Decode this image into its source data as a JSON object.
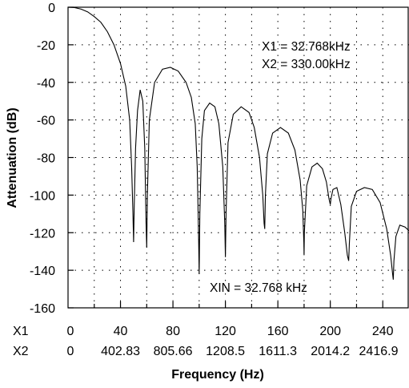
{
  "chart_data": {
    "type": "line",
    "title": "",
    "xlabel": "Frequency (Hz)",
    "ylabel": "Attenuation (dB)",
    "xlim": [
      0,
      260
    ],
    "ylim": [
      -160,
      0
    ],
    "grid": true,
    "x_axis_rows": [
      {
        "name": "X1",
        "ticks": [
          "0",
          "40",
          "80",
          "120",
          "160",
          "200",
          "240"
        ]
      },
      {
        "name": "X2",
        "ticks": [
          "0",
          "402.83",
          "805.66",
          "1208.5",
          "1611.3",
          "2014.2",
          "2416.9"
        ]
      }
    ],
    "x_tick_values": [
      0,
      40,
      80,
      120,
      160,
      200,
      240
    ],
    "y_ticks": [
      0,
      -20,
      -40,
      -60,
      -80,
      -100,
      -120,
      -140,
      -160
    ],
    "annotations": [
      "X1 = 32.768kHz",
      "X2 = 330.00kHz",
      "XIN = 32.768 kHz"
    ],
    "series": [
      {
        "x": [
          0,
          5,
          10,
          15,
          20,
          25,
          30,
          35,
          40,
          44,
          47,
          48.5,
          49.5,
          50,
          50.5,
          51.5,
          53,
          55,
          57,
          58.5,
          59.5,
          60,
          60.5,
          62,
          66,
          72,
          78,
          84,
          90,
          94,
          97,
          98.5,
          99.5,
          100,
          100.5,
          102,
          104,
          108,
          112,
          115,
          118,
          119.5,
          120,
          120.5,
          122,
          126,
          132,
          138,
          142,
          146,
          148.5,
          149.5,
          150,
          150.5,
          152,
          156,
          162,
          168,
          173,
          177,
          179,
          179.8,
          180,
          180.2,
          182,
          186,
          190,
          194,
          197,
          199,
          200,
          200.5,
          202,
          205,
          208,
          211,
          213,
          214,
          214.5,
          216,
          220,
          226,
          232,
          238,
          243,
          246,
          247.5,
          248,
          248.5,
          250,
          253,
          257,
          260
        ],
        "y": [
          0,
          -0.2,
          -1,
          -2.5,
          -5,
          -8,
          -13,
          -20,
          -30,
          -42,
          -60,
          -85,
          -110,
          -125,
          -105,
          -75,
          -55,
          -44,
          -50,
          -75,
          -115,
          -128,
          -100,
          -60,
          -40,
          -33,
          -32,
          -34,
          -40,
          -48,
          -62,
          -85,
          -120,
          -142,
          -110,
          -70,
          -55,
          -51,
          -53,
          -62,
          -85,
          -115,
          -133,
          -110,
          -72,
          -57,
          -53,
          -56,
          -64,
          -80,
          -100,
          -115,
          -118,
          -100,
          -78,
          -67,
          -64,
          -67,
          -76,
          -92,
          -108,
          -125,
          -132,
          -120,
          -95,
          -85,
          -83,
          -86,
          -93,
          -102,
          -105,
          -102,
          -97,
          -96,
          -105,
          -120,
          -132,
          -135,
          -126,
          -106,
          -98,
          -96,
          -97,
          -104,
          -118,
          -132,
          -142,
          -145,
          -135,
          -122,
          -116,
          -117,
          -119
        ]
      }
    ]
  }
}
